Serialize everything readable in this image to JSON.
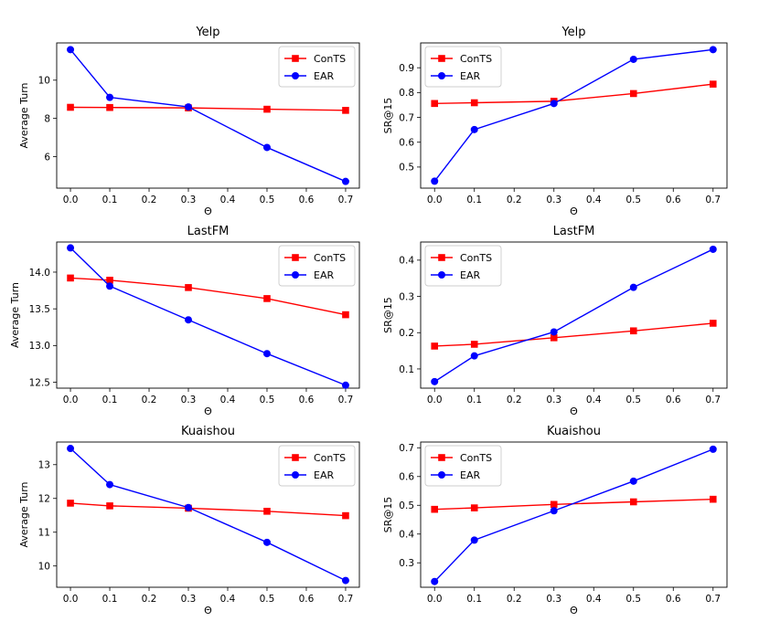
{
  "chart_data": [
    {
      "type": "line",
      "title": "Yelp",
      "xlabel": "Θ",
      "ylabel": "Average Turn",
      "x": [
        0.0,
        0.1,
        0.3,
        0.5,
        0.7
      ],
      "xlim": [
        -0.035,
        0.735
      ],
      "ylim": [
        4.35,
        11.95
      ],
      "xticks": [
        0.0,
        0.1,
        0.2,
        0.3,
        0.4,
        0.5,
        0.6,
        0.7
      ],
      "yticks": [
        6,
        8,
        10
      ],
      "xtick_labels": [
        "0.0",
        "0.1",
        "0.2",
        "0.3",
        "0.4",
        "0.5",
        "0.6",
        "0.7"
      ],
      "ytick_labels": [
        "6",
        "8",
        "10"
      ],
      "legend_position": "top-right",
      "series": [
        {
          "name": "ConTS",
          "color": "#ff0000",
          "marker": "square",
          "values": [
            8.58,
            8.57,
            8.55,
            8.48,
            8.42
          ]
        },
        {
          "name": "EAR",
          "color": "#0000ff",
          "marker": "circle",
          "values": [
            11.6,
            9.1,
            8.6,
            6.48,
            4.7
          ]
        }
      ]
    },
    {
      "type": "line",
      "title": "Yelp",
      "xlabel": "Θ",
      "ylabel": "SR@15",
      "x": [
        0.0,
        0.1,
        0.3,
        0.5,
        0.7
      ],
      "xlim": [
        -0.035,
        0.735
      ],
      "ylim": [
        0.415,
        1.0
      ],
      "xticks": [
        0.0,
        0.1,
        0.2,
        0.3,
        0.4,
        0.5,
        0.6,
        0.7
      ],
      "yticks": [
        0.5,
        0.6,
        0.7,
        0.8,
        0.9
      ],
      "xtick_labels": [
        "0.0",
        "0.1",
        "0.2",
        "0.3",
        "0.4",
        "0.5",
        "0.6",
        "0.7"
      ],
      "ytick_labels": [
        "0.5",
        "0.6",
        "0.7",
        "0.8",
        "0.9"
      ],
      "legend_position": "top-left",
      "series": [
        {
          "name": "ConTS",
          "color": "#ff0000",
          "marker": "square",
          "values": [
            0.756,
            0.759,
            0.765,
            0.796,
            0.834
          ]
        },
        {
          "name": "EAR",
          "color": "#0000ff",
          "marker": "circle",
          "values": [
            0.443,
            0.651,
            0.756,
            0.934,
            0.973
          ]
        }
      ]
    },
    {
      "type": "line",
      "title": "LastFM",
      "xlabel": "Θ",
      "ylabel": "Average Turn",
      "x": [
        0.0,
        0.1,
        0.3,
        0.5,
        0.7
      ],
      "xlim": [
        -0.035,
        0.735
      ],
      "ylim": [
        12.42,
        14.41
      ],
      "xticks": [
        0.0,
        0.1,
        0.2,
        0.3,
        0.4,
        0.5,
        0.6,
        0.7
      ],
      "yticks": [
        12.5,
        13.0,
        13.5,
        14.0
      ],
      "xtick_labels": [
        "0.0",
        "0.1",
        "0.2",
        "0.3",
        "0.4",
        "0.5",
        "0.6",
        "0.7"
      ],
      "ytick_labels": [
        "12.5",
        "13.0",
        "13.5",
        "14.0"
      ],
      "legend_position": "top-right",
      "series": [
        {
          "name": "ConTS",
          "color": "#ff0000",
          "marker": "square",
          "values": [
            13.92,
            13.89,
            13.79,
            13.64,
            13.42
          ]
        },
        {
          "name": "EAR",
          "color": "#0000ff",
          "marker": "circle",
          "values": [
            14.33,
            13.81,
            13.35,
            12.89,
            12.46
          ]
        }
      ]
    },
    {
      "type": "line",
      "title": "LastFM",
      "xlabel": "Θ",
      "ylabel": "SR@15",
      "x": [
        0.0,
        0.1,
        0.3,
        0.5,
        0.7
      ],
      "xlim": [
        -0.035,
        0.735
      ],
      "ylim": [
        0.047,
        0.45
      ],
      "xticks": [
        0.0,
        0.1,
        0.2,
        0.3,
        0.4,
        0.5,
        0.6,
        0.7
      ],
      "yticks": [
        0.1,
        0.2,
        0.3,
        0.4
      ],
      "xtick_labels": [
        "0.0",
        "0.1",
        "0.2",
        "0.3",
        "0.4",
        "0.5",
        "0.6",
        "0.7"
      ],
      "ytick_labels": [
        "0.1",
        "0.2",
        "0.3",
        "0.4"
      ],
      "legend_position": "top-left",
      "series": [
        {
          "name": "ConTS",
          "color": "#ff0000",
          "marker": "square",
          "values": [
            0.163,
            0.168,
            0.186,
            0.205,
            0.226
          ]
        },
        {
          "name": "EAR",
          "color": "#0000ff",
          "marker": "circle",
          "values": [
            0.065,
            0.136,
            0.202,
            0.325,
            0.43
          ]
        }
      ]
    },
    {
      "type": "line",
      "title": "Kuaishou",
      "xlabel": "Θ",
      "ylabel": "Average Turn",
      "x": [
        0.0,
        0.1,
        0.3,
        0.5,
        0.7
      ],
      "xlim": [
        -0.035,
        0.735
      ],
      "ylim": [
        9.37,
        13.67
      ],
      "xticks": [
        0.0,
        0.1,
        0.2,
        0.3,
        0.4,
        0.5,
        0.6,
        0.7
      ],
      "yticks": [
        10,
        11,
        12,
        13
      ],
      "xtick_labels": [
        "0.0",
        "0.1",
        "0.2",
        "0.3",
        "0.4",
        "0.5",
        "0.6",
        "0.7"
      ],
      "ytick_labels": [
        "10",
        "11",
        "12",
        "13"
      ],
      "legend_position": "top-right",
      "series": [
        {
          "name": "ConTS",
          "color": "#ff0000",
          "marker": "square",
          "values": [
            11.86,
            11.78,
            11.71,
            11.62,
            11.49
          ]
        },
        {
          "name": "EAR",
          "color": "#0000ff",
          "marker": "circle",
          "values": [
            13.48,
            12.41,
            11.73,
            10.7,
            9.57
          ]
        }
      ]
    },
    {
      "type": "line",
      "title": "Kuaishou",
      "xlabel": "Θ",
      "ylabel": "SR@15",
      "x": [
        0.0,
        0.1,
        0.3,
        0.5,
        0.7
      ],
      "xlim": [
        -0.035,
        0.735
      ],
      "ylim": [
        0.215,
        0.72
      ],
      "xticks": [
        0.0,
        0.1,
        0.2,
        0.3,
        0.4,
        0.5,
        0.6,
        0.7
      ],
      "yticks": [
        0.3,
        0.4,
        0.5,
        0.6,
        0.7
      ],
      "xtick_labels": [
        "0.0",
        "0.1",
        "0.2",
        "0.3",
        "0.4",
        "0.5",
        "0.6",
        "0.7"
      ],
      "ytick_labels": [
        "0.3",
        "0.4",
        "0.5",
        "0.6",
        "0.7"
      ],
      "legend_position": "top-left",
      "series": [
        {
          "name": "ConTS",
          "color": "#ff0000",
          "marker": "square",
          "values": [
            0.486,
            0.491,
            0.503,
            0.512,
            0.521
          ]
        },
        {
          "name": "EAR",
          "color": "#0000ff",
          "marker": "circle",
          "values": [
            0.235,
            0.379,
            0.481,
            0.584,
            0.695
          ]
        }
      ]
    }
  ]
}
